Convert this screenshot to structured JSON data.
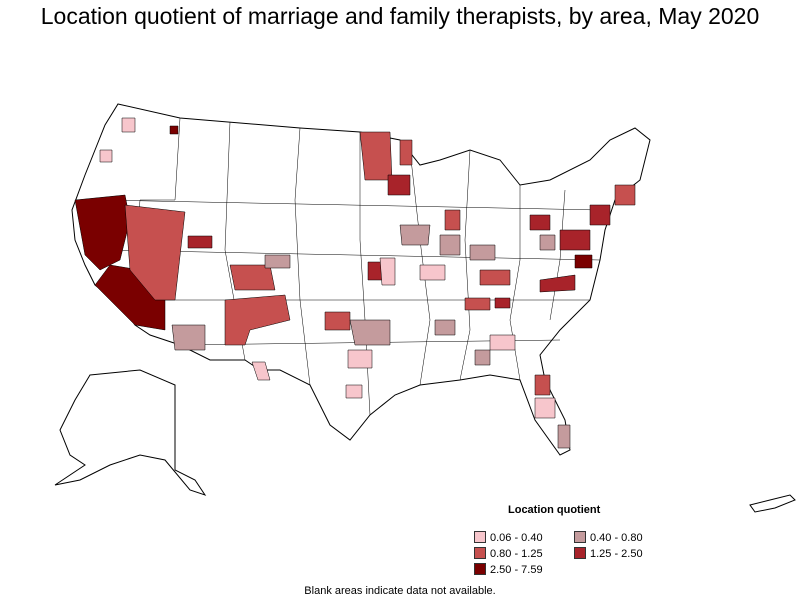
{
  "title": "Location quotient of marriage and family therapists, by area, May 2020",
  "legend": {
    "title": "Location quotient",
    "items": [
      {
        "label": "0.06 - 0.40",
        "color": "#f7c6cc"
      },
      {
        "label": "0.40 - 0.80",
        "color": "#c49b9d"
      },
      {
        "label": "0.80 - 1.25",
        "color": "#c6504f"
      },
      {
        "label": "1.25 - 2.50",
        "color": "#a8232a"
      },
      {
        "label": "2.50 - 7.59",
        "color": "#7a0000"
      }
    ]
  },
  "footnote": "Blank areas indicate data not available.",
  "colors": {
    "blank": "#ffffff",
    "border": "#000000"
  }
}
